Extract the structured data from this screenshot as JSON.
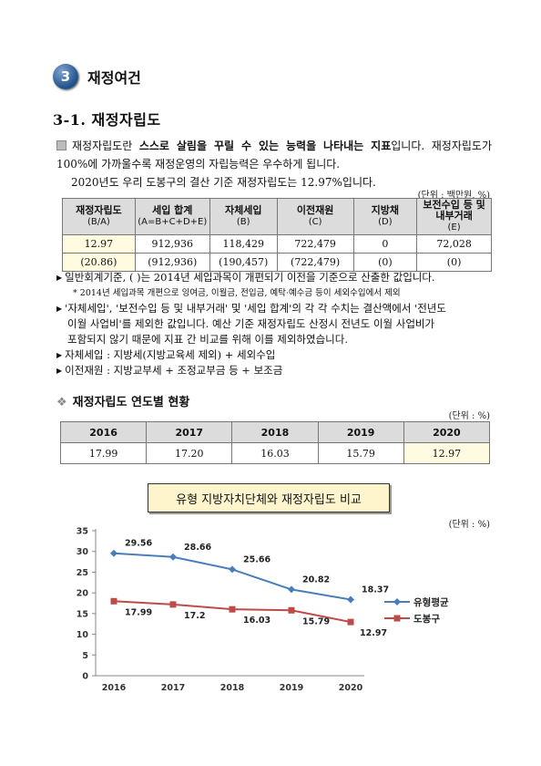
{
  "section": {
    "number": "3",
    "title": "재정여건"
  },
  "subsection_title": "3-1.  재정자립도",
  "intro": {
    "part1": "재정자립도란 ",
    "highlight": "스스로 살림을 꾸릴 수 있는 능력을 나타내는 지표",
    "part2": "입니다. 재정자립도가 100%에 가까울수록 재정운영의 자립능력은 우수하게 됩니다.",
    "line3": "2020년도 우리 도봉구의 결산 기준 재정자립도는 12.97%입니다."
  },
  "table1": {
    "unit": "(단위 : 백만원, %)",
    "headers": [
      {
        "name": "재정자립도",
        "sub": "(B/A)"
      },
      {
        "name": "세입 합계",
        "sub": "(A=B+C+D+E)"
      },
      {
        "name": "자체세입",
        "sub": "(B)"
      },
      {
        "name": "이전재원",
        "sub": "(C)"
      },
      {
        "name": "지방채",
        "sub": "(D)"
      },
      {
        "name": "보전수입 등 및 내부거래",
        "sub": "(E)"
      }
    ],
    "row1": [
      "12.97",
      "912,936",
      "118,429",
      "722,479",
      "0",
      "72,028"
    ],
    "row2": [
      "(20.86)",
      "(912,936)",
      "(190,457)",
      "(722,479)",
      "(0)",
      "(0)"
    ]
  },
  "notes": {
    "n1": "일반회계기준, ( )는 2014년 세입과목이 개편되기 이전을 기준으로 산출한 값입니다.",
    "n1_small": "* 2014년 세입과목 개편으로 잉여금, 이월금, 전입금, 예탁·예수금 등이 세외수입에서 제외",
    "n2a": "'자체세입', '보전수입 등 및 내부거래' 및 '세입 합계'의 각 각 수치는 결산액에서 '전년도",
    "n2b": "이월 사업비'를 제외한 값입니다. 예산 기준 재정자립도 산정시 전년도 이월 사업비가",
    "n2c": "포함되지 않기 때문에 지표 간 비교를 위해 이를 제외하였습니다.",
    "n3": "자체세입 : 지방세(지방교육세 제외) + 세외수입",
    "n4": "이전재원 : 지방교부세 + 조정교부금 등 + 보조금"
  },
  "trend": {
    "title": "재정자립도 연도별 현황",
    "unit": "(단위 : %)",
    "years": [
      "2016",
      "2017",
      "2018",
      "2019",
      "2020"
    ],
    "values": [
      "17.99",
      "17.20",
      "16.03",
      "15.79",
      "12.97"
    ]
  },
  "chart_box_title": "유형 지방자치단체와 재정자립도 비교",
  "chart_data": {
    "type": "line",
    "unit": "(단위 : %)",
    "x": [
      "2016",
      "2017",
      "2018",
      "2019",
      "2020"
    ],
    "ylim": [
      0,
      35
    ],
    "yticks": [
      "0",
      "5",
      "10",
      "15",
      "20",
      "25",
      "30",
      "35"
    ],
    "series": [
      {
        "name": "유형평균",
        "values": [
          29.56,
          28.66,
          25.66,
          20.82,
          18.37
        ],
        "labels": [
          "29.56",
          "28.66",
          "25.66",
          "20.82",
          "18.37"
        ],
        "color": "#4a7ebb"
      },
      {
        "name": "도봉구",
        "values": [
          17.99,
          17.2,
          16.03,
          15.79,
          12.97
        ],
        "labels": [
          "17.99",
          "17.2",
          "16.03",
          "15.79",
          "12.97"
        ],
        "color": "#be4b48"
      }
    ],
    "grid": false,
    "legend": "right"
  }
}
